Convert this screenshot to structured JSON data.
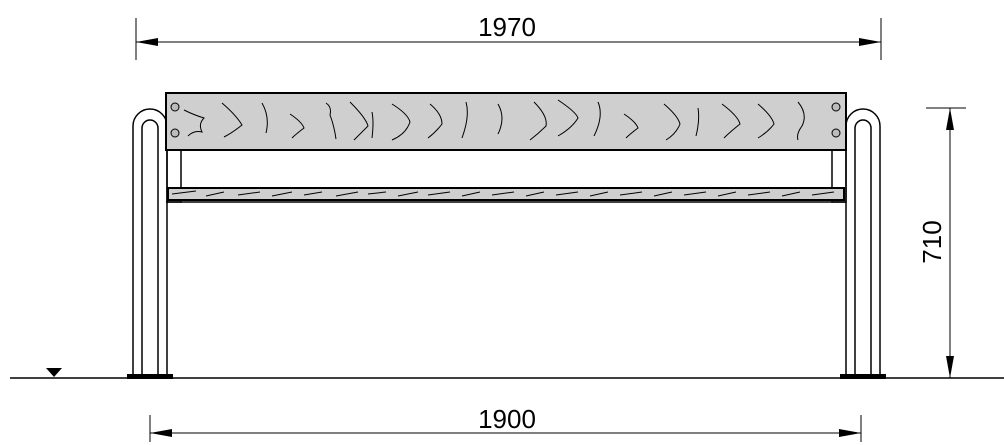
{
  "dimensions": {
    "top_width": "1970",
    "bottom_width": "1900",
    "height": "710"
  },
  "colors": {
    "board_fill": "#cfcfcf",
    "line": "#000000",
    "background": "#ffffff"
  }
}
